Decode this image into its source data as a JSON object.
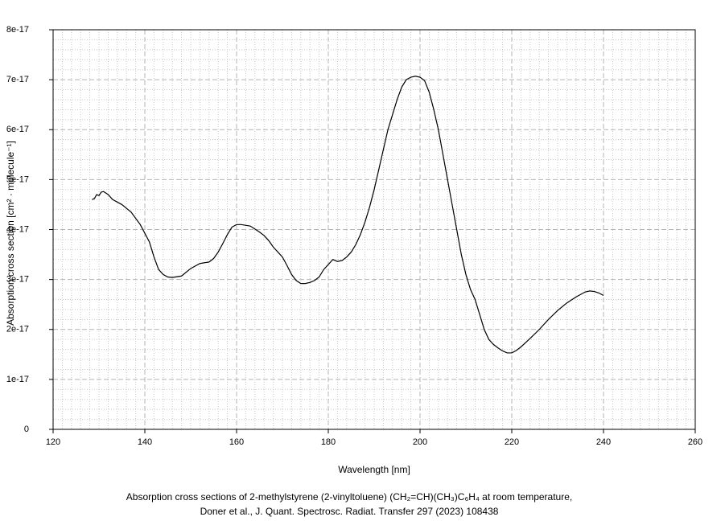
{
  "chart_data": {
    "type": "line",
    "title": [
      "Absorption cross sections of 2-methylstyrene (2-vinyltoluene) (CH₂=CH)(CH₃)C₆H₄ at room temperature,",
      "Doner et al., J. Quant. Spectrosc. Radiat. Transfer 297 (2023) 108438"
    ],
    "xlabel": "Wavelength [nm]",
    "ylabel": "Absorption cross section [cm² · molecule⁻¹]",
    "xlim": [
      120,
      260
    ],
    "xticks": [
      120,
      140,
      160,
      180,
      200,
      220,
      240,
      260
    ],
    "ylim": [
      0,
      8e-17
    ],
    "yticks": [
      0,
      1e-17,
      2e-17,
      3e-17,
      4e-17,
      5e-17,
      6e-17,
      7e-17,
      8e-17
    ],
    "grid": true,
    "minor_grid": true,
    "series": [
      {
        "color": "#000000",
        "x": [
          128.5,
          129,
          129.5,
          130,
          130.5,
          131,
          132,
          133,
          135,
          137,
          139,
          141,
          142,
          143,
          144,
          145,
          146,
          148,
          150,
          152,
          154,
          155,
          156,
          157,
          158,
          159,
          160,
          161,
          163,
          165,
          166,
          167,
          168,
          169,
          170,
          171,
          172,
          173,
          174,
          175,
          176,
          177,
          178,
          179,
          180,
          181,
          182,
          183,
          184,
          185,
          186,
          187,
          188,
          189,
          190,
          191,
          192,
          193,
          194,
          195,
          196,
          197,
          198,
          199,
          200,
          201,
          202,
          203,
          204,
          205,
          206,
          207,
          208,
          209,
          210,
          211,
          212,
          213,
          214,
          215,
          216,
          217,
          218,
          219,
          220,
          221,
          222,
          224,
          226,
          228,
          230,
          232,
          234,
          236,
          237,
          238,
          239,
          240
        ],
        "values": [
          4.6e-17,
          4.62e-17,
          4.7e-17,
          4.68e-17,
          4.75e-17,
          4.76e-17,
          4.7e-17,
          4.6e-17,
          4.5e-17,
          4.35e-17,
          4.1e-17,
          3.75e-17,
          3.45e-17,
          3.2e-17,
          3.1e-17,
          3.05e-17,
          3.04e-17,
          3.07e-17,
          3.22e-17,
          3.32e-17,
          3.35e-17,
          3.42e-17,
          3.55e-17,
          3.72e-17,
          3.9e-17,
          4.05e-17,
          4.1e-17,
          4.1e-17,
          4.07e-17,
          3.95e-17,
          3.88e-17,
          3.78e-17,
          3.65e-17,
          3.55e-17,
          3.45e-17,
          3.28e-17,
          3.1e-17,
          2.98e-17,
          2.92e-17,
          2.92e-17,
          2.94e-17,
          2.98e-17,
          3.05e-17,
          3.2e-17,
          3.3e-17,
          3.4e-17,
          3.36e-17,
          3.38e-17,
          3.45e-17,
          3.55e-17,
          3.7e-17,
          3.9e-17,
          4.15e-17,
          4.45e-17,
          4.8e-17,
          5.2e-17,
          5.6e-17,
          6e-17,
          6.3e-17,
          6.6e-17,
          6.85e-17,
          7e-17,
          7.05e-17,
          7.07e-17,
          7.05e-17,
          6.98e-17,
          6.75e-17,
          6.4e-17,
          6e-17,
          5.5e-17,
          5e-17,
          4.5e-17,
          4e-17,
          3.5e-17,
          3.1e-17,
          2.8e-17,
          2.6e-17,
          2.3e-17,
          2e-17,
          1.8e-17,
          1.7e-17,
          1.63e-17,
          1.57e-17,
          1.53e-17,
          1.53e-17,
          1.58e-17,
          1.65e-17,
          1.82e-17,
          2e-17,
          2.2e-17,
          2.38e-17,
          2.53e-17,
          2.65e-17,
          2.75e-17,
          2.77e-17,
          2.76e-17,
          2.73e-17,
          2.68e-17
        ]
      }
    ]
  }
}
